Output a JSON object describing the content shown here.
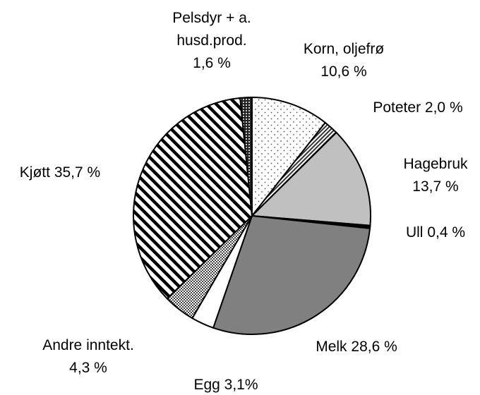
{
  "chart_data": {
    "type": "pie",
    "categories": [
      "Korn, oljefrø",
      "Poteter",
      "Hagebruk",
      "Ull",
      "Melk",
      "Egg",
      "Andre inntekt.",
      "Kjøtt",
      "Pelsdyr + a. husd.prod."
    ],
    "values": [
      10.6,
      2.0,
      13.7,
      0.4,
      28.6,
      3.1,
      4.3,
      35.7,
      1.6
    ],
    "value_labels": [
      "10,6 %",
      "2,0 %",
      "13,7 %",
      "0,4 %",
      "28,6 %",
      "3,1%",
      "4,3 %",
      "35,7 %",
      "1,6 %"
    ],
    "colors": [
      "url(#p-dots)",
      "url(#p-fine)",
      "#c0c0c0",
      "#000000",
      "#808080",
      "#ffffff",
      "url(#p-check)",
      "url(#p-stripe)",
      "url(#p-dark)"
    ]
  }
}
